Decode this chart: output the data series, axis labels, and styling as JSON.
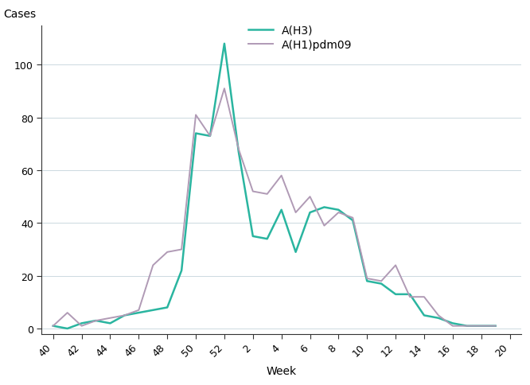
{
  "title": "",
  "xlabel": "Week",
  "ylabel": "Cases",
  "series": [
    {
      "name": "A(H3)",
      "color": "#2ab5a0",
      "linewidth": 1.8,
      "data": {
        "values": [
          1,
          0,
          2,
          3,
          2,
          5,
          6,
          7,
          8,
          22,
          74,
          73,
          108,
          67,
          35,
          34,
          45,
          29,
          44,
          46,
          45,
          41,
          18,
          17,
          13,
          13,
          5,
          4,
          2,
          1,
          1,
          1
        ]
      }
    },
    {
      "name": "A(H1)pdm09",
      "color": "#b09ab5",
      "linewidth": 1.4,
      "data": {
        "values": [
          1,
          6,
          1,
          3,
          4,
          5,
          7,
          24,
          29,
          30,
          81,
          73,
          91,
          68,
          52,
          51,
          58,
          44,
          50,
          39,
          44,
          42,
          19,
          18,
          24,
          12,
          12,
          5,
          1,
          1,
          1,
          1
        ]
      }
    }
  ],
  "xtick_labels": [
    "40",
    "42",
    "44",
    "46",
    "48",
    "50",
    "52",
    "2",
    "4",
    "6",
    "8",
    "10",
    "12",
    "14",
    "16",
    "18",
    "20"
  ],
  "xtick_positions": [
    0,
    2,
    4,
    6,
    8,
    10,
    12,
    14,
    16,
    18,
    20,
    22,
    24,
    26,
    28,
    30,
    32
  ],
  "ylim": [
    -2,
    115
  ],
  "yticks": [
    0,
    20,
    40,
    60,
    80,
    100
  ],
  "background_color": "#ffffff",
  "grid_color": "#ccd9e0",
  "grid_linewidth": 0.7,
  "spine_color": "#333333",
  "tick_label_fontsize": 9,
  "axis_label_fontsize": 10,
  "legend_fontsize": 10
}
